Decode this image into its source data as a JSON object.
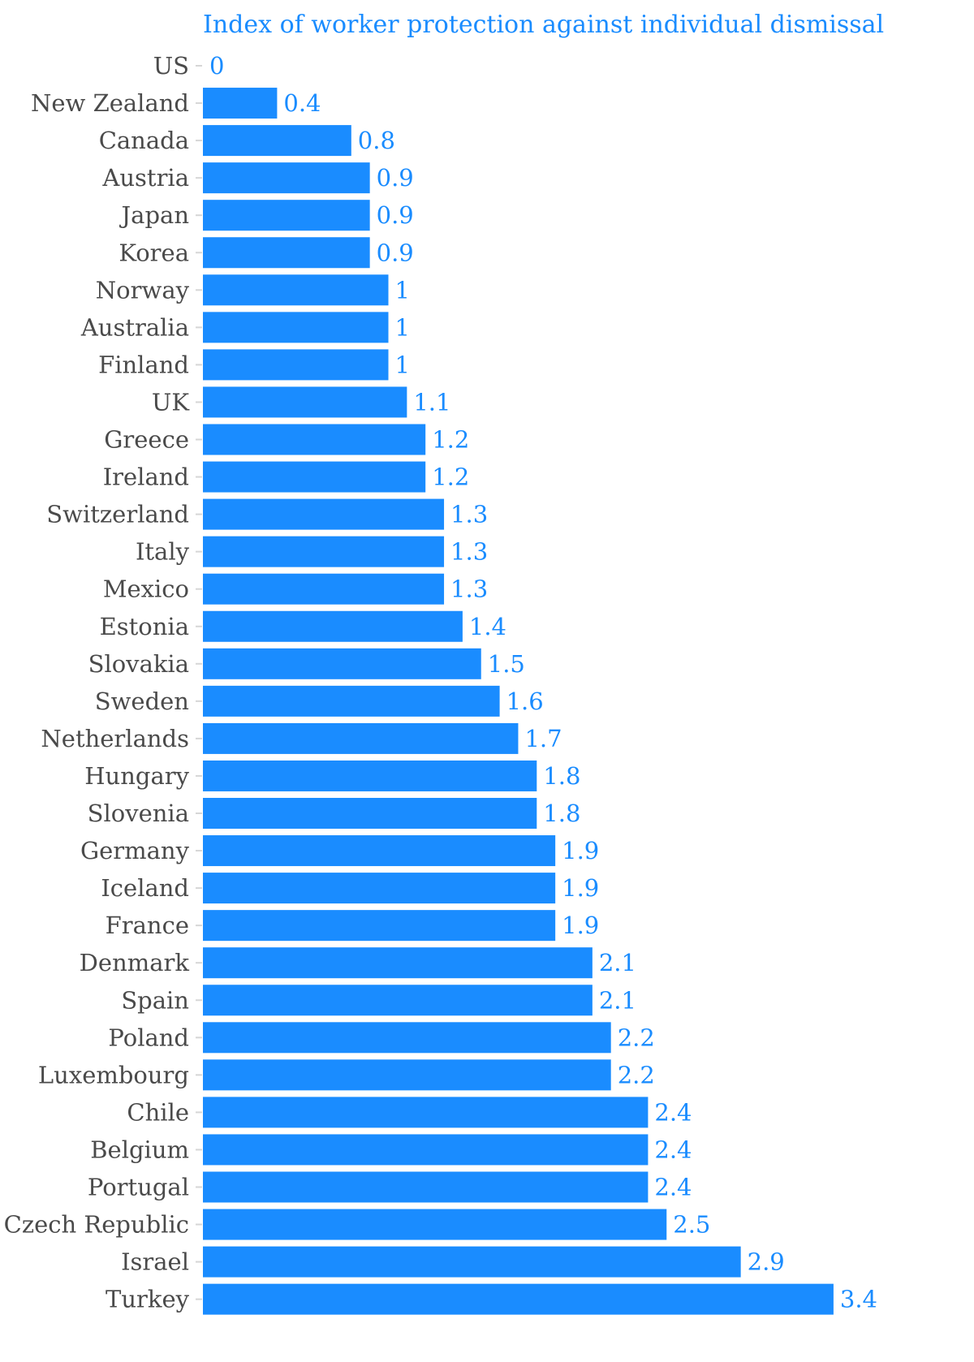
{
  "chart_data": {
    "type": "bar",
    "orientation": "horizontal",
    "title": "Index of worker protection against individual dismissal",
    "categories": [
      "US",
      "New Zealand",
      "Canada",
      "Austria",
      "Japan",
      "Korea",
      "Norway",
      "Australia",
      "Finland",
      "UK",
      "Greece",
      "Ireland",
      "Switzerland",
      "Italy",
      "Mexico",
      "Estonia",
      "Slovakia",
      "Sweden",
      "Netherlands",
      "Hungary",
      "Slovenia",
      "Germany",
      "Iceland",
      "France",
      "Denmark",
      "Spain",
      "Poland",
      "Luxembourg",
      "Chile",
      "Belgium",
      "Portugal",
      "Czech Republic",
      "Israel",
      "Turkey"
    ],
    "values": [
      0,
      0.4,
      0.8,
      0.9,
      0.9,
      0.9,
      1,
      1,
      1,
      1.1,
      1.2,
      1.2,
      1.3,
      1.3,
      1.3,
      1.4,
      1.5,
      1.6,
      1.7,
      1.8,
      1.8,
      1.9,
      1.9,
      1.9,
      2.1,
      2.1,
      2.2,
      2.2,
      2.4,
      2.4,
      2.4,
      2.5,
      2.9,
      3.4
    ],
    "value_labels": [
      "0",
      "0.4",
      "0.8",
      "0.9",
      "0.9",
      "0.9",
      "1",
      "1",
      "1",
      "1.1",
      "1.2",
      "1.2",
      "1.3",
      "1.3",
      "1.3",
      "1.4",
      "1.5",
      "1.6",
      "1.7",
      "1.8",
      "1.8",
      "1.9",
      "1.9",
      "1.9",
      "2.1",
      "2.1",
      "2.2",
      "2.2",
      "2.4",
      "2.4",
      "2.4",
      "2.5",
      "2.9",
      "3.4"
    ],
    "xlim": [
      0,
      3.4
    ],
    "grid": false,
    "legend": "none",
    "colors": {
      "bar": "#1a8cff",
      "value_label": "#1a8cff",
      "title": "#1a8cff",
      "category_label": "#4a4a4a",
      "tick": "#d6d6d6"
    }
  }
}
